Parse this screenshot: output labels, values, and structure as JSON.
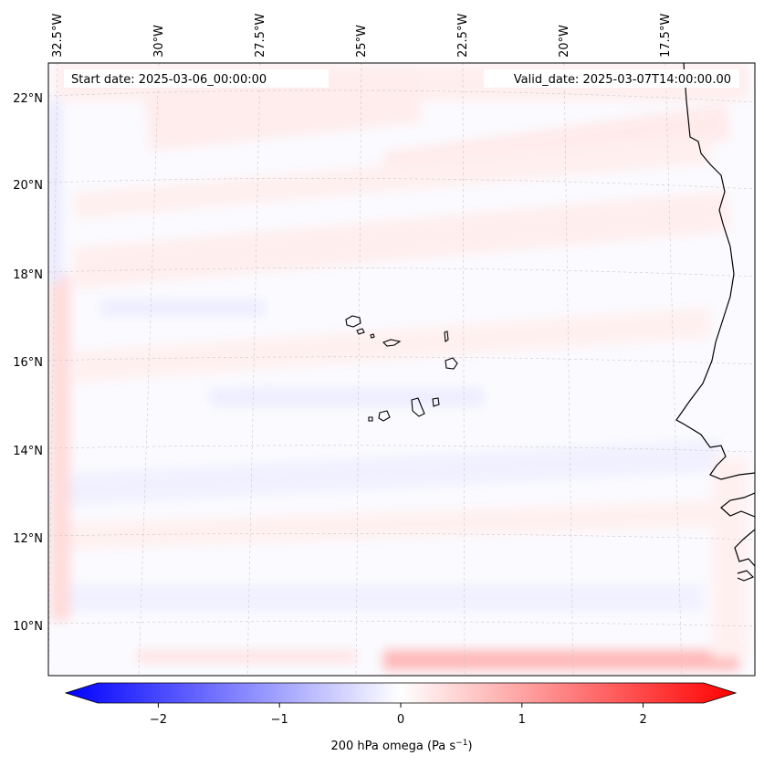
{
  "header": {
    "start_date": "Start date: 2025-03-06_00:00:00",
    "valid_date": "Valid_date: 2025-03-07T14:00:00.00"
  },
  "map": {
    "lon_labels": [
      "32.5°W",
      "30°W",
      "27.5°W",
      "25°W",
      "22.5°W",
      "20°W",
      "17.5°W"
    ],
    "lat_labels": [
      "22°N",
      "20°N",
      "18°N",
      "16°N",
      "14°N",
      "12°N",
      "10°N"
    ]
  },
  "colorbar": {
    "ticks": [
      "−2",
      "−1",
      "0",
      "1",
      "2"
    ],
    "tick_values": [
      -2,
      -1,
      0,
      1,
      2
    ],
    "range": [
      -2.5,
      2.5
    ],
    "label": "200 hPa omega (Pa s",
    "label_sup": "−1",
    "label_end": ")",
    "colors": {
      "negative": "#0000ff",
      "zero": "#ffffff",
      "positive": "#ff0000"
    }
  }
}
